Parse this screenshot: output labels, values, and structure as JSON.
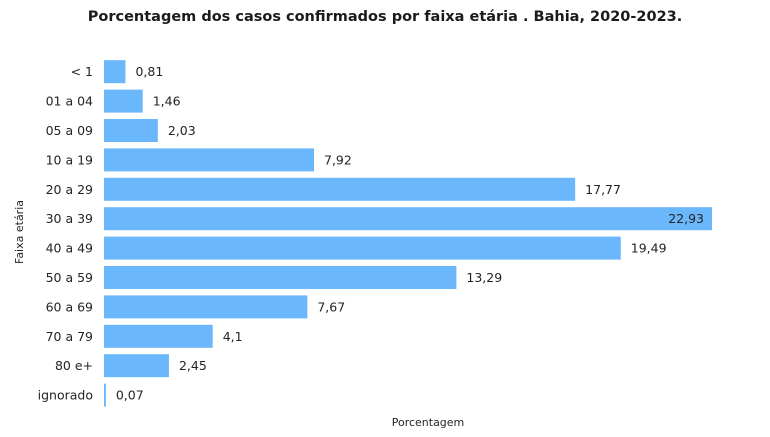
{
  "chart_data": {
    "type": "bar",
    "orientation": "horizontal",
    "title": "Porcentagem dos casos confirmados por  faixa etária . Bahia, 2020-2023.",
    "xlabel": "Porcentagem",
    "ylabel": "Faixa etária",
    "categories": [
      "< 1",
      "01 a 04",
      "05 a 09",
      "10 a 19",
      "20 a 29",
      "30 a 39",
      "40 a 49",
      "50 a 59",
      "60 a 69",
      "70 a 79",
      "80 e+",
      "ignorado"
    ],
    "values": [
      0.81,
      1.46,
      2.03,
      7.92,
      17.77,
      22.93,
      19.49,
      13.29,
      7.67,
      4.1,
      2.45,
      0.07
    ],
    "value_labels": [
      "0,81",
      "1,46",
      "2,03",
      "7,92",
      "17,77",
      "22,93",
      "19,49",
      "13,29",
      "7,67",
      "4,1",
      "2,45",
      "0,07"
    ],
    "xlim": [
      0,
      22.93
    ],
    "grid": false,
    "bar_color": "#6AB7FB"
  }
}
